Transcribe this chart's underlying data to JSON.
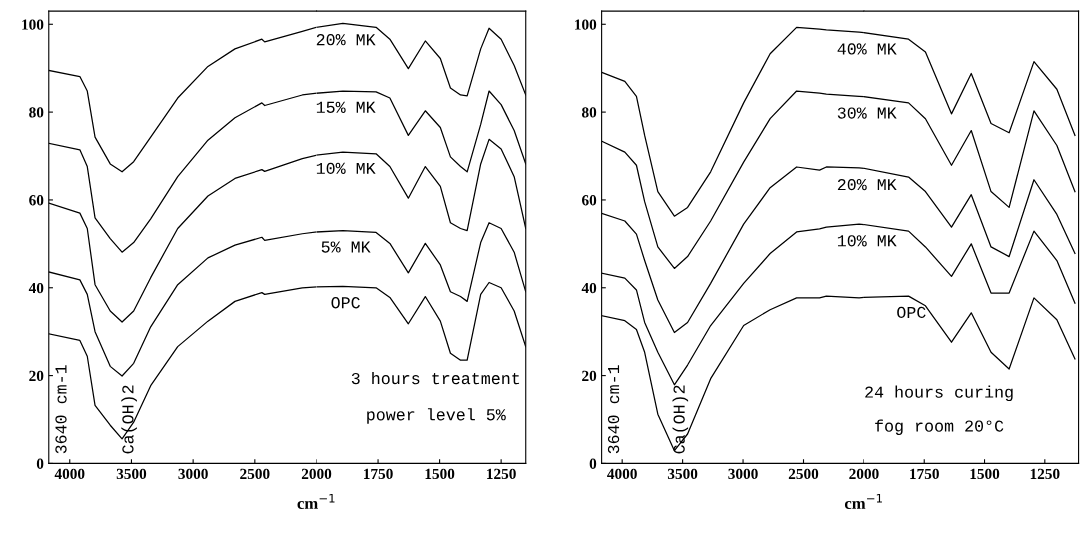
{
  "chart_data": [
    {
      "type": "line",
      "xlabel": "cm$^{−1}$",
      "xlim": [
        4170,
        2000
      ],
      "ylim": [
        0,
        103
      ],
      "xticks": [
        4000,
        3500,
        3000,
        2500,
        2000
      ],
      "yticks": [
        0,
        20,
        40,
        60,
        80,
        100
      ],
      "x": [
        4170,
        3918,
        3858,
        3795,
        3672,
        3576,
        3482,
        3344,
        3125,
        2880,
        2661,
        2443,
        2420,
        2115,
        2000
      ],
      "annotations": [
        "3640 cm-1",
        "Ca(OH)2"
      ],
      "series": [
        {
          "color": "#000000",
          "values": [
            89.5,
            88.1,
            84.8,
            74.3,
            68.2,
            66.4,
            68.7,
            74.3,
            83.2,
            90.4,
            94.4,
            96.6,
            96.0,
            98.4,
            99.3
          ]
        },
        {
          "color": "#000000",
          "values": [
            72.9,
            71.4,
            67.6,
            55.9,
            51.2,
            48.1,
            50.3,
            55.7,
            65.3,
            73.6,
            78.7,
            82.1,
            81.5,
            83.9,
            84.3
          ]
        },
        {
          "color": "#000000",
          "values": [
            59.3,
            57.0,
            53.5,
            40.7,
            34.7,
            32.2,
            34.7,
            42.3,
            53.5,
            60.9,
            64.9,
            66.9,
            66.5,
            69.4,
            70.2
          ]
        },
        {
          "color": "#000000",
          "values": [
            43.6,
            41.8,
            38.5,
            30.0,
            22.1,
            19.9,
            22.8,
            31.1,
            40.7,
            46.8,
            49.7,
            51.5,
            50.8,
            52.3,
            52.7
          ]
        },
        {
          "color": "#000000",
          "values": [
            29.5,
            28.0,
            24.4,
            13.2,
            8.7,
            5.6,
            9.4,
            17.7,
            26.6,
            32.4,
            36.9,
            38.9,
            38.5,
            40.0,
            40.2
          ]
        }
      ]
    },
    {
      "type": "line",
      "xlim": [
        2000,
        1150
      ],
      "ylim": [
        0,
        103
      ],
      "xticks": [
        1750,
        1500,
        1250
      ],
      "yticks": [
        0,
        20,
        40,
        60,
        80,
        100
      ],
      "tick_labels": "x",
      "x": [
        2000,
        1893,
        1758,
        1702,
        1627,
        1558,
        1497,
        1456,
        1415,
        1388,
        1333,
        1299,
        1250,
        1197,
        1150
      ],
      "annotations": [
        "3 hours treatment",
        "power level 5%"
      ],
      "series": [
        {
          "name": "20% MK",
          "color": "#000000",
          "values": [
            99.3,
            100.2,
            99.3,
            96.6,
            89.9,
            96.2,
            92.2,
            85.5,
            83.9,
            83.7,
            94.4,
            99.1,
            96.6,
            90.6,
            83.9
          ]
        },
        {
          "name": "15% MK",
          "color": "#000000",
          "values": [
            84.3,
            84.8,
            84.6,
            83.2,
            74.7,
            80.3,
            76.5,
            69.8,
            67.6,
            66.4,
            77.2,
            84.8,
            81.7,
            75.8,
            68.2
          ]
        },
        {
          "name": "10% MK",
          "color": "#000000",
          "values": [
            70.2,
            70.9,
            70.5,
            67.6,
            60.4,
            67.6,
            63.1,
            54.8,
            53.5,
            53.0,
            68.2,
            73.8,
            71.6,
            65.3,
            53.5
          ]
        },
        {
          "name": "5% MK",
          "color": "#000000",
          "values": [
            52.7,
            53.0,
            52.6,
            50.1,
            43.4,
            50.1,
            45.2,
            39.1,
            38.0,
            36.9,
            50.3,
            54.8,
            53.5,
            48.1,
            39.1
          ]
        },
        {
          "name": "OPC",
          "color": "#000000",
          "values": [
            40.2,
            40.3,
            40.0,
            37.8,
            31.8,
            38.0,
            32.4,
            25.1,
            23.5,
            23.5,
            38.5,
            41.2,
            40.0,
            34.7,
            26.6
          ]
        }
      ]
    },
    {
      "type": "line",
      "xlabel": "cm$^{−1}$",
      "xlim": [
        4170,
        2000
      ],
      "ylim": [
        0,
        103
      ],
      "xticks": [
        4000,
        3500,
        3000,
        2500,
        2000
      ],
      "yticks": [
        0,
        20,
        40,
        60,
        80,
        100
      ],
      "x": [
        4164,
        3978,
        3882,
        3814,
        3705,
        3568,
        3459,
        3268,
        2995,
        2776,
        2557,
        2367,
        2311,
        2040,
        2000
      ],
      "annotations": [
        "3640 cm-1",
        "Ca(OH)2"
      ],
      "series": [
        {
          "color": "#000000",
          "values": [
            89.0,
            87.0,
            83.6,
            74.7,
            61.9,
            56.3,
            58.3,
            66.4,
            82.1,
            93.3,
            99.3,
            98.9,
            98.7,
            98.2,
            98.1
          ]
        },
        {
          "color": "#000000",
          "values": [
            73.3,
            70.9,
            67.9,
            59.6,
            49.3,
            44.4,
            47.1,
            55.2,
            68.6,
            78.5,
            84.8,
            84.3,
            84.1,
            83.6,
            83.5
          ]
        },
        {
          "color": "#000000",
          "values": [
            56.9,
            55.2,
            52.2,
            46.2,
            37.2,
            29.8,
            32.1,
            41.0,
            54.5,
            62.8,
            67.5,
            66.8,
            67.5,
            67.3,
            67.2
          ]
        },
        {
          "color": "#000000",
          "values": [
            43.3,
            42.2,
            39.5,
            32.1,
            25.3,
            17.9,
            22.4,
            31.4,
            41.0,
            47.8,
            52.7,
            53.4,
            53.8,
            54.5,
            54.4
          ]
        },
        {
          "color": "#000000",
          "values": [
            33.6,
            32.5,
            30.5,
            25.3,
            11.2,
            2.9,
            6.7,
            19.3,
            31.4,
            35.0,
            37.7,
            37.7,
            38.1,
            37.7,
            37.8
          ]
        }
      ]
    },
    {
      "type": "line",
      "xlim": [
        2000,
        1110
      ],
      "ylim": [
        0,
        103
      ],
      "xticks": [
        1750,
        1500,
        1250
      ],
      "yticks": [
        0,
        20,
        40,
        60,
        80,
        100
      ],
      "tick_labels": "x",
      "x": [
        2000,
        1815,
        1745,
        1637,
        1555,
        1473,
        1398,
        1295,
        1200,
        1125
      ],
      "annotations": [
        "24 hours curing",
        "fog room 20°C"
      ],
      "series": [
        {
          "name": "40% MK",
          "color": "#000000",
          "values": [
            98.1,
            96.6,
            93.7,
            79.6,
            88.8,
            77.4,
            75.3,
            91.5,
            85.2,
            74.7
          ]
        },
        {
          "name": "30% MK",
          "color": "#000000",
          "values": [
            83.5,
            82.1,
            78.5,
            67.9,
            75.8,
            61.9,
            58.3,
            80.3,
            72.4,
            61.9
          ]
        },
        {
          "name": "20% MK",
          "color": "#000000",
          "values": [
            67.2,
            65.2,
            61.9,
            53.8,
            61.2,
            49.3,
            47.1,
            64.6,
            56.7,
            47.8
          ]
        },
        {
          "name": "10% MK",
          "color": "#000000",
          "values": [
            54.4,
            52.9,
            49.3,
            42.6,
            50.0,
            38.8,
            38.8,
            52.9,
            46.2,
            36.5
          ]
        },
        {
          "name": "OPC",
          "color": "#000000",
          "values": [
            37.8,
            38.1,
            35.9,
            27.6,
            34.3,
            25.3,
            21.5,
            37.7,
            32.7,
            23.8
          ]
        }
      ]
    }
  ]
}
